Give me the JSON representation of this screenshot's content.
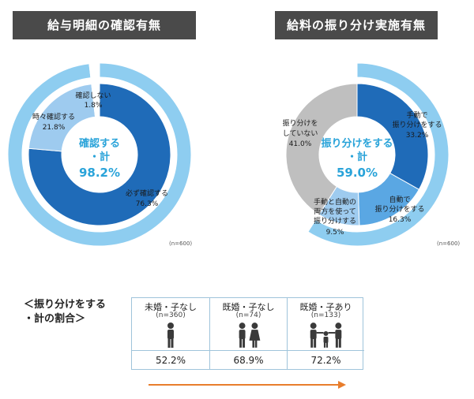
{
  "titles": {
    "left": "給与明細の確認有無",
    "right": "給料の振り分け実施有無"
  },
  "chart_data": [
    {
      "type": "pie",
      "title": "給与明細の確認有無",
      "note": "(n=600)",
      "center": {
        "line1": "確認する",
        "line2": "・計",
        "value": "98.2%"
      },
      "inner_ring": [
        {
          "label": "必ず確認する",
          "value": 76.3,
          "value_text": "76.3%",
          "color": "#1f6bb8"
        },
        {
          "label": "時々確認する",
          "value": 21.8,
          "value_text": "21.8%",
          "color": "#9ecbef"
        },
        {
          "label": "確認しない",
          "value": 1.8,
          "value_text": "1.8%",
          "color": "#ffffff"
        }
      ],
      "outer_ring": [
        {
          "label": "確認する・計",
          "value": 98.2,
          "color": "#8ecdf0"
        },
        {
          "label": "確認しない",
          "value": 1.8,
          "color": "#ffffff"
        }
      ]
    },
    {
      "type": "pie",
      "title": "給料の振り分け実施有無",
      "note": "(n=600)",
      "center": {
        "line1": "振り分けをする",
        "line2": "・計",
        "value": "59.0%"
      },
      "inner_ring": [
        {
          "label": "手動で振り分けをする",
          "value": 33.2,
          "value_text": "33.2%",
          "color": "#1f6bb8"
        },
        {
          "label": "自動で振り分けをする",
          "value": 16.3,
          "value_text": "16.3%",
          "color": "#5aa7e3"
        },
        {
          "label": "手動と自動の両方を使って振り分けする",
          "value": 9.5,
          "value_text": "9.5%",
          "color": "#9ecbef"
        },
        {
          "label": "振り分けをしていない",
          "value": 41.0,
          "value_text": "41.0%",
          "color": "#bfbfbf"
        }
      ],
      "outer_ring": [
        {
          "label": "振り分けをする・計",
          "value": 59.0,
          "color": "#8ecdf0"
        },
        {
          "label": "振り分けをしていない",
          "value": 41.0,
          "color": "#ffffff"
        }
      ]
    },
    {
      "type": "table",
      "title": "＜振り分けをする・計の割合＞",
      "title_lines": [
        "＜振り分けをする",
        "・計の割合＞"
      ],
      "columns": [
        {
          "label": "未婚・子なし",
          "n": "(n=360)",
          "value": 52.2,
          "value_text": "52.2%",
          "icon": "single-person-icon"
        },
        {
          "label": "既婚・子なし",
          "n": "(n=74)",
          "value": 68.9,
          "value_text": "68.9%",
          "icon": "couple-icon"
        },
        {
          "label": "既婚・子あり",
          "n": "(n=133)",
          "value": 72.2,
          "value_text": "72.2%",
          "icon": "family-icon"
        }
      ]
    }
  ],
  "colors": {
    "accent": "#29a3d9",
    "arrow": "#e87d2c",
    "title_bg": "#4a4a4a"
  }
}
